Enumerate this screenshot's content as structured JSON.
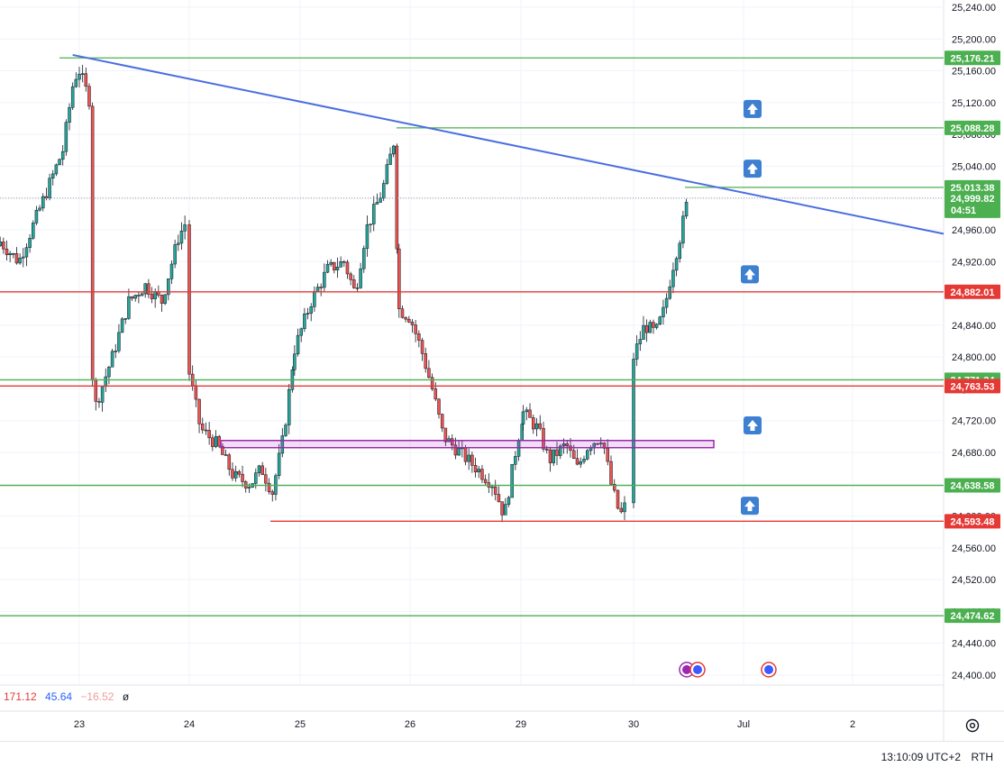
{
  "chart_data": {
    "type": "candlestick",
    "price_axis": {
      "ticks": [
        "25,240.00",
        "25,200.00",
        "25,160.00",
        "25,120.00",
        "25,080.00",
        "25,040.00",
        "25,000.00",
        "24,960.00",
        "24,920.00",
        "24,880.00",
        "24,840.00",
        "24,800.00",
        "24,760.00",
        "24,720.00",
        "24,680.00",
        "24,640.00",
        "24,600.00",
        "24,560.00",
        "24,520.00",
        "24,480.00",
        "24,440.00",
        "24,400.00"
      ],
      "ylim": [
        24390,
        25250
      ]
    },
    "time_axis": {
      "ticks": [
        "23",
        "24",
        "25",
        "26",
        "29",
        "30",
        "Jul",
        "2"
      ]
    },
    "levels": [
      {
        "value": 25176.21,
        "label": "25,176.21",
        "color": "#4caf50"
      },
      {
        "value": 25088.28,
        "label": "25,088.28",
        "color": "#4caf50"
      },
      {
        "value": 25013.38,
        "label": "25,013.38",
        "color": "#4caf50"
      },
      {
        "value": 24882.01,
        "label": "24,882.01",
        "color": "#e53935"
      },
      {
        "value": 24771.34,
        "label": "24,771.34",
        "color": "#4caf50"
      },
      {
        "value": 24763.53,
        "label": "24,763.53",
        "color": "#e53935"
      },
      {
        "value": 24638.58,
        "label": "24,638.58",
        "color": "#4caf50"
      },
      {
        "value": 24593.48,
        "label": "24,593.48",
        "color": "#e53935"
      },
      {
        "value": 24474.62,
        "label": "24,474.62",
        "color": "#4caf50"
      }
    ],
    "current_price": {
      "value": 24999.82,
      "label": "24,999.82",
      "countdown": "04:51",
      "color": "#4caf50"
    },
    "trendline": {
      "from": {
        "x": 0.12,
        "y": 25180
      },
      "to": {
        "x": 8.73,
        "y": 24955
      },
      "color": "#4a6ee0"
    },
    "zone": {
      "x_from": 1.88,
      "x_to": 6.25,
      "y_top": 24695,
      "y_bottom": 24686,
      "color": "#9c27b0"
    },
    "arrows": [
      {
        "x": 6.09,
        "y": 25112
      },
      {
        "x": 6.09,
        "y": 25037
      },
      {
        "x": 6.07,
        "y": 24904
      },
      {
        "x": 6.09,
        "y": 24714
      },
      {
        "x": 6.07,
        "y": 24613
      }
    ],
    "candles_per_day": [
      {
        "day": "22",
        "open": 24935,
        "high": 24975,
        "low": 24905,
        "close": 24948
      },
      {
        "day": "23",
        "open": 24940,
        "high": 25180,
        "low": 24930,
        "close": 25140
      }
    ],
    "indicator_values": [
      "171.12",
      "45.64",
      "−16.52",
      "ø"
    ],
    "colors": {
      "up": "#26a69a",
      "down": "#ef5350"
    }
  },
  "footer": {
    "clock": "13:10:09 UTC+2",
    "session": "RTH"
  }
}
